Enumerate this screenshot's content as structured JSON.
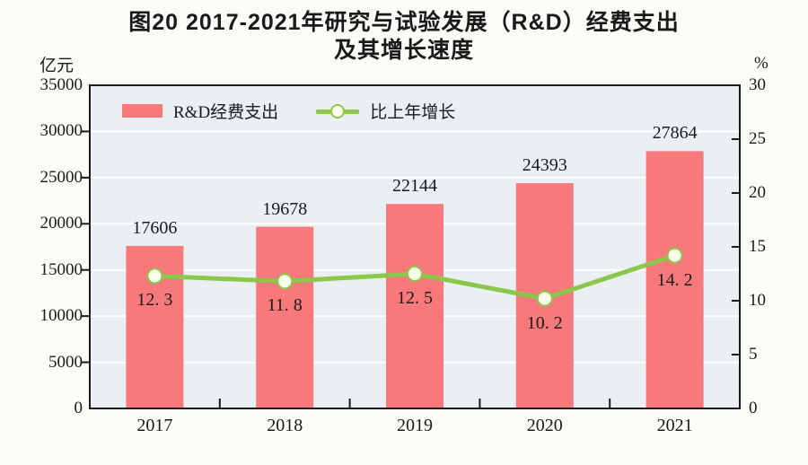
{
  "title": {
    "line1": "图20  2017-2021年研究与试验发展（R&D）经费支出",
    "line2": "及其增长速度"
  },
  "axes": {
    "left_unit": "亿元",
    "right_unit": "%"
  },
  "colors": {
    "bar": "#F8797B",
    "line": "#8BC74A",
    "marker_fill": "#FDFDEC",
    "plot_bg": "#EAEFF3",
    "grid": "#FFFFFF",
    "axis": "#1A1A1A",
    "text": "#1A1A1A",
    "page_bg": "#FBFBF8"
  },
  "chart_data": {
    "type": "bar",
    "title": "图20 2017-2021年研究与试验发展（R&D）经费支出及其增长速度",
    "categories": [
      "2017",
      "2018",
      "2019",
      "2020",
      "2021"
    ],
    "series": [
      {
        "name": "R&D经费支出",
        "type": "bar",
        "axis": "left",
        "unit": "亿元",
        "color": "#F8797B",
        "values": [
          17606,
          19678,
          22144,
          24393,
          27864
        ],
        "labels": [
          "17606",
          "19678",
          "22144",
          "24393",
          "27864"
        ]
      },
      {
        "name": "比上年增长",
        "type": "line",
        "axis": "right",
        "unit": "%",
        "color": "#8BC74A",
        "values": [
          12.3,
          11.8,
          12.5,
          10.2,
          14.2
        ],
        "labels": [
          "12. 3",
          "11. 8",
          "12. 5",
          "10. 2",
          "14. 2"
        ]
      }
    ],
    "left_axis": {
      "unit": "亿元",
      "min": 0,
      "max": 35000,
      "step": 5000,
      "tick_labels": [
        "0",
        "5000",
        "10000",
        "15000",
        "20000",
        "25000",
        "30000",
        "35000"
      ]
    },
    "right_axis": {
      "unit": "%",
      "min": 0,
      "max": 30,
      "step": 5,
      "tick_labels": [
        "0",
        "5",
        "10",
        "15",
        "20",
        "25",
        "30"
      ]
    },
    "grid": true,
    "legend_position": "top-left-inside"
  }
}
